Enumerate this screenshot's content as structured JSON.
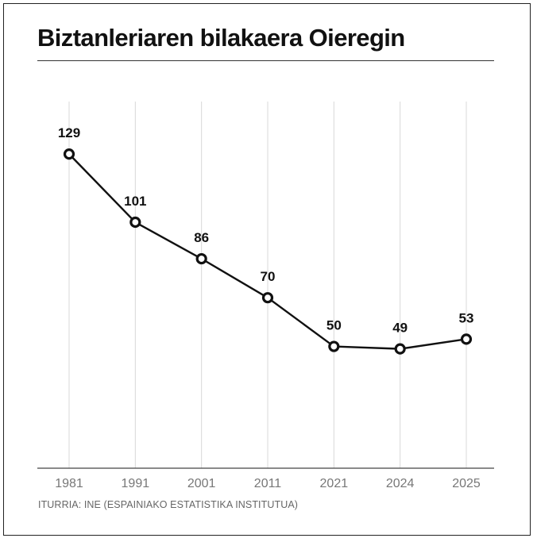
{
  "title": "Biztanleriaren bilakaera Oieregin",
  "source": "ITURRIA: INE (ESPAINIAKO ESTATISTIKA INSTITUTUA)",
  "colors": {
    "line": "#111111",
    "grid": "#d8d8d8",
    "axis": "#444444",
    "tick_text": "#777777",
    "marker_fill": "#ffffff"
  },
  "chart_data": {
    "type": "line",
    "title": "Biztanleriaren bilakaera Oieregin",
    "categories": [
      "1981",
      "1991",
      "2001",
      "2011",
      "2021",
      "2024",
      "2025"
    ],
    "series": [
      {
        "values": [
          129,
          101,
          86,
          70,
          50,
          49,
          53
        ]
      }
    ],
    "data_labels": [
      "129",
      "101",
      "86",
      "70",
      "50",
      "49",
      "53"
    ],
    "ylim": [
      0,
      145
    ],
    "grid": "vertical",
    "xlabel": "",
    "ylabel": "",
    "legend": "none"
  }
}
